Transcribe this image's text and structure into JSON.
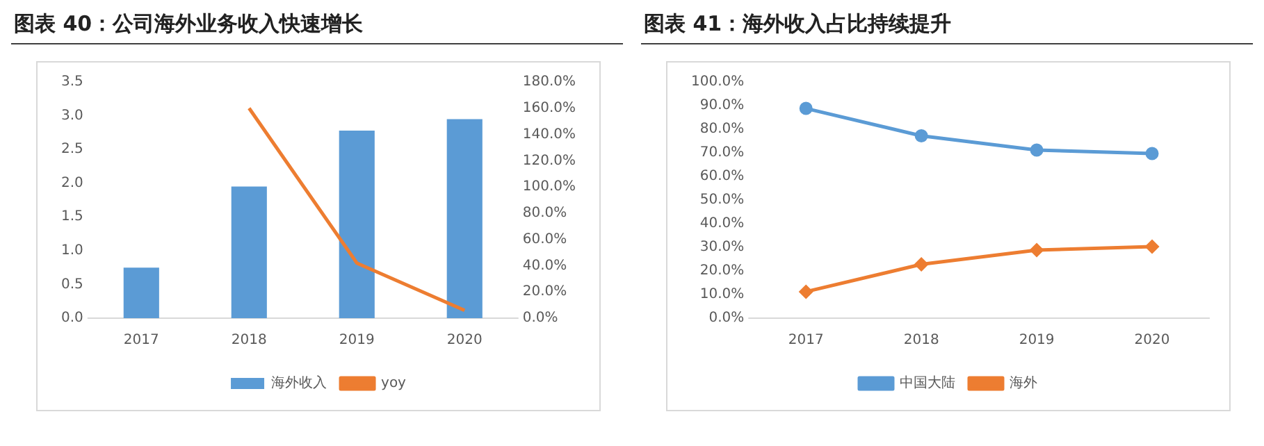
{
  "chart_data": [
    {
      "type": "bar",
      "title": "图表 40：公司海外业务收入快速增长",
      "categories": [
        "2017",
        "2018",
        "2019",
        "2020"
      ],
      "series": [
        {
          "name": "海外收入",
          "color": "#5b9bd5",
          "values": [
            0.75,
            1.95,
            2.78,
            2.95
          ]
        },
        {
          "name": "yoy",
          "type": "line",
          "axis": "y2",
          "color": "#ed7d31",
          "values": [
            null,
            160,
            42,
            6
          ]
        }
      ],
      "ylim": [
        0,
        3.5
      ],
      "yticks": [
        {
          "value": 0,
          "label": "0.0"
        },
        {
          "value": 0.5,
          "label": "0.5"
        },
        {
          "value": 1,
          "label": "1.0"
        },
        {
          "value": 1.5,
          "label": "1.5"
        },
        {
          "value": 2,
          "label": "2.0"
        },
        {
          "value": 2.5,
          "label": "2.5"
        },
        {
          "value": 3,
          "label": "3.0"
        },
        {
          "value": 3.5,
          "label": "3.5"
        }
      ],
      "y2lim": [
        0,
        180
      ],
      "y2ticks": [
        {
          "value": 0,
          "label": "0.0%"
        },
        {
          "value": 20,
          "label": "20.0%"
        },
        {
          "value": 40,
          "label": "40.0%"
        },
        {
          "value": 60,
          "label": "60.0%"
        },
        {
          "value": 80,
          "label": "80.0%"
        },
        {
          "value": 100,
          "label": "100.0%"
        },
        {
          "value": 120,
          "label": "120.0%"
        },
        {
          "value": 140,
          "label": "140.0%"
        },
        {
          "value": 160,
          "label": "160.0%"
        },
        {
          "value": 180,
          "label": "180.0%"
        }
      ],
      "grid": false,
      "legend": "bottom",
      "marker": "none"
    },
    {
      "type": "line",
      "title": "图表 41：海外收入占比持续提升",
      "categories": [
        "2017",
        "2018",
        "2019",
        "2020"
      ],
      "series": [
        {
          "name": "中国大陆",
          "color": "#5b9bd5",
          "marker": "circle",
          "values": [
            88.8,
            77.2,
            71.2,
            69.7
          ]
        },
        {
          "name": "海外",
          "color": "#ed7d31",
          "marker": "diamond",
          "values": [
            11.2,
            22.8,
            28.8,
            30.3
          ]
        }
      ],
      "ylim": [
        0,
        100
      ],
      "yticks": [
        {
          "value": 0,
          "label": "0.0%"
        },
        {
          "value": 10,
          "label": "10.0%"
        },
        {
          "value": 20,
          "label": "20.0%"
        },
        {
          "value": 30,
          "label": "30.0%"
        },
        {
          "value": 40,
          "label": "40.0%"
        },
        {
          "value": 50,
          "label": "50.0%"
        },
        {
          "value": 60,
          "label": "60.0%"
        },
        {
          "value": 70,
          "label": "70.0%"
        },
        {
          "value": 80,
          "label": "80.0%"
        },
        {
          "value": 90,
          "label": "90.0%"
        },
        {
          "value": 100,
          "label": "100.0%"
        }
      ],
      "grid": false,
      "legend": "bottom"
    }
  ]
}
